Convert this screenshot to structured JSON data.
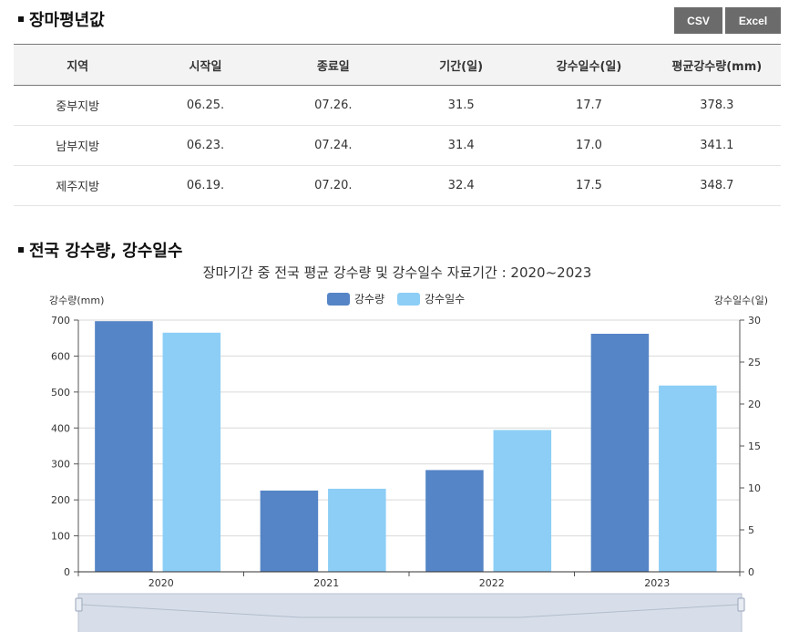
{
  "section1": {
    "title": "장마평년값",
    "buttons": {
      "csv": "CSV",
      "excel": "Excel"
    }
  },
  "table": {
    "headers": [
      "지역",
      "시작일",
      "종료일",
      "기간(일)",
      "강수일수(일)",
      "평균강수량(mm)"
    ],
    "rows": [
      [
        "중부지방",
        "06.25.",
        "07.26.",
        "31.5",
        "17.7",
        "378.3"
      ],
      [
        "남부지방",
        "06.23.",
        "07.24.",
        "31.4",
        "17.0",
        "341.1"
      ],
      [
        "제주지방",
        "06.19.",
        "07.20.",
        "32.4",
        "17.5",
        "348.7"
      ]
    ]
  },
  "section2": {
    "title": "전국 강수량, 강수일수"
  },
  "chart_data": {
    "type": "bar",
    "title": "장마기간 중 전국 평균 강수량 및 강수일수 자료기간 : 2020~2023",
    "categories": [
      "2020",
      "2021",
      "2022",
      "2023"
    ],
    "series": [
      {
        "name": "강수량",
        "axis": "left",
        "color": "#5585c6",
        "values": [
          697,
          226,
          283,
          662
        ]
      },
      {
        "name": "강수일수",
        "axis": "right",
        "color": "#8ccef6",
        "values": [
          28.5,
          9.9,
          16.9,
          22.2
        ]
      }
    ],
    "ylabel_left": "강수량(mm)",
    "ylabel_right": "강수일수(일)",
    "ylim_left": [
      0,
      700
    ],
    "ylim_right": [
      0,
      30
    ],
    "yticks_left": [
      0,
      100,
      200,
      300,
      400,
      500,
      600,
      700
    ],
    "yticks_right": [
      0,
      5,
      10,
      15,
      20,
      25,
      30
    ],
    "legend_position": "top-center",
    "grid": true
  }
}
